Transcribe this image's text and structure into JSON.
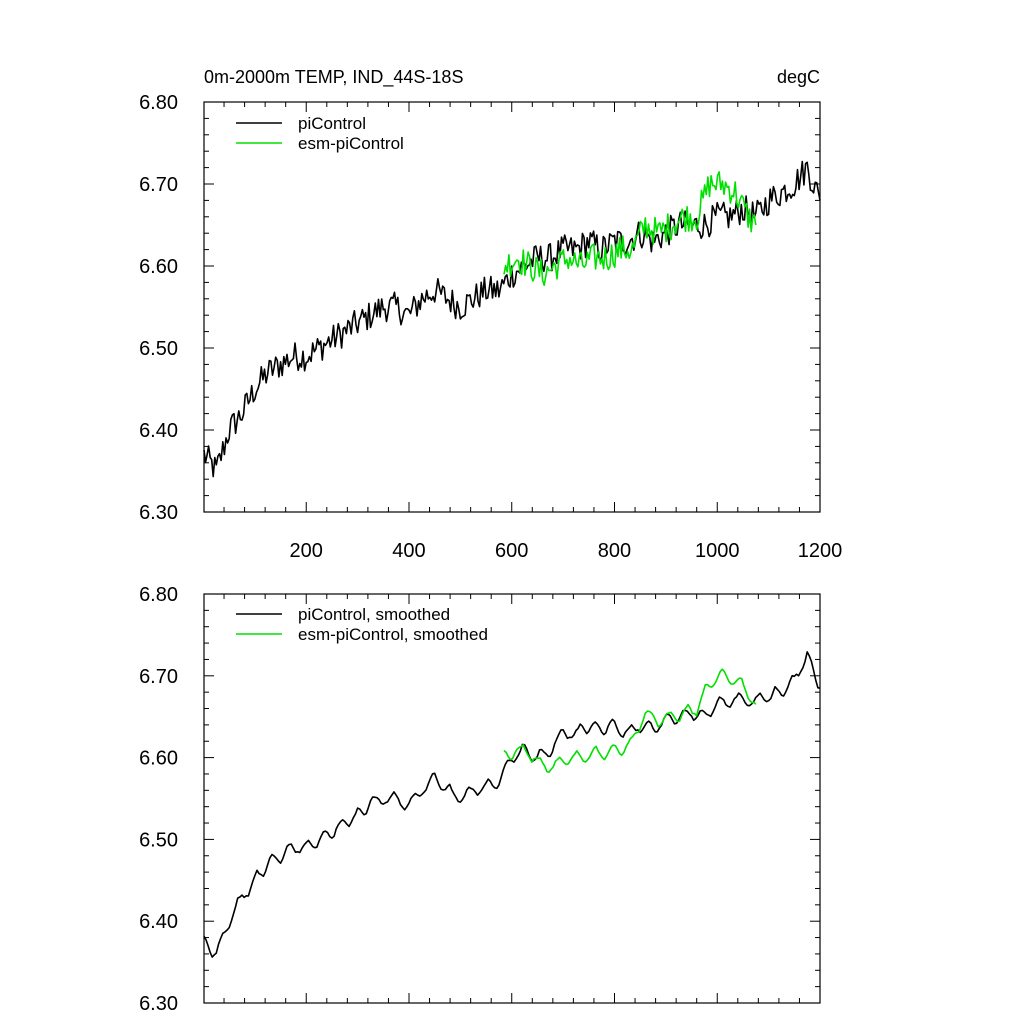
{
  "chart_data": [
    {
      "type": "line",
      "title": "0m-2000m TEMP, IND_44S-18S",
      "units": "degC",
      "xlim": [
        1,
        1200
      ],
      "ylim": [
        6.3,
        6.8
      ],
      "yticks": [
        6.3,
        6.4,
        6.5,
        6.6,
        6.7,
        6.8
      ],
      "ytick_labels": [
        "6.30",
        "6.40",
        "6.50",
        "6.60",
        "6.70",
        "6.80"
      ],
      "xticks": [
        200,
        400,
        600,
        800,
        1000,
        1200
      ],
      "xtick_labels": [
        "200",
        "400",
        "600",
        "800",
        "1000",
        "1200"
      ],
      "legend_position": "top-left",
      "series": [
        {
          "name": "piControl",
          "color": "#000000",
          "x": [
            1,
            25,
            50,
            75,
            100,
            125,
            150,
            175,
            200,
            225,
            250,
            275,
            300,
            325,
            350,
            375,
            400,
            425,
            450,
            475,
            500,
            525,
            550,
            575,
            600,
            625,
            650,
            675,
            700,
            725,
            750,
            775,
            800,
            825,
            850,
            875,
            900,
            925,
            950,
            975,
            1000,
            1025,
            1050,
            1075,
            1100,
            1125,
            1150,
            1175,
            1200
          ],
          "values": [
            6.37,
            6.35,
            6.4,
            6.42,
            6.45,
            6.47,
            6.48,
            6.49,
            6.49,
            6.5,
            6.51,
            6.52,
            6.53,
            6.54,
            6.55,
            6.55,
            6.54,
            6.56,
            6.57,
            6.56,
            6.55,
            6.56,
            6.57,
            6.57,
            6.59,
            6.6,
            6.61,
            6.61,
            6.62,
            6.62,
            6.63,
            6.62,
            6.63,
            6.63,
            6.64,
            6.63,
            6.64,
            6.65,
            6.65,
            6.65,
            6.66,
            6.66,
            6.67,
            6.66,
            6.68,
            6.69,
            6.7,
            6.72,
            6.68
          ]
        },
        {
          "name": "esm-piControl",
          "color": "#00e000",
          "x": [
            585,
            610,
            635,
            660,
            685,
            710,
            735,
            760,
            785,
            810,
            835,
            860,
            885,
            910,
            935,
            960,
            985,
            1010,
            1035,
            1060,
            1075
          ],
          "values": [
            6.6,
            6.61,
            6.6,
            6.59,
            6.6,
            6.61,
            6.6,
            6.61,
            6.61,
            6.62,
            6.62,
            6.65,
            6.64,
            6.65,
            6.66,
            6.66,
            6.7,
            6.7,
            6.69,
            6.66,
            6.65
          ]
        }
      ]
    },
    {
      "type": "line",
      "title": "",
      "xlim": [
        1,
        1200
      ],
      "ylim": [
        6.3,
        6.8
      ],
      "yticks": [
        6.3,
        6.4,
        6.5,
        6.6,
        6.7,
        6.8
      ],
      "ytick_labels": [
        "6.30",
        "6.40",
        "6.50",
        "6.60",
        "6.70",
        "6.80"
      ],
      "xticks": [
        200,
        400,
        600,
        800,
        1000,
        1200
      ],
      "legend_position": "top-left",
      "series": [
        {
          "name": "piControl, smoothed",
          "color": "#000000",
          "x": [
            1,
            25,
            50,
            75,
            100,
            125,
            150,
            175,
            200,
            225,
            250,
            275,
            300,
            325,
            350,
            375,
            400,
            425,
            450,
            475,
            500,
            525,
            550,
            575,
            600,
            625,
            650,
            675,
            700,
            725,
            750,
            775,
            800,
            825,
            850,
            875,
            900,
            925,
            950,
            975,
            1000,
            1025,
            1050,
            1075,
            1100,
            1125,
            1150,
            1175,
            1200
          ],
          "values": [
            6.375,
            6.36,
            6.4,
            6.43,
            6.45,
            6.47,
            6.48,
            6.49,
            6.49,
            6.5,
            6.51,
            6.52,
            6.53,
            6.545,
            6.55,
            6.55,
            6.54,
            6.56,
            6.575,
            6.56,
            6.55,
            6.56,
            6.565,
            6.57,
            6.6,
            6.61,
            6.6,
            6.61,
            6.63,
            6.63,
            6.64,
            6.635,
            6.64,
            6.63,
            6.64,
            6.635,
            6.645,
            6.65,
            6.655,
            6.65,
            6.665,
            6.67,
            6.67,
            6.67,
            6.675,
            6.68,
            6.695,
            6.725,
            6.685
          ]
        },
        {
          "name": "esm-piControl, smoothed",
          "color": "#00e000",
          "x": [
            585,
            610,
            635,
            660,
            685,
            710,
            735,
            760,
            785,
            810,
            835,
            860,
            885,
            910,
            935,
            960,
            985,
            1010,
            1035,
            1060,
            1075
          ],
          "values": [
            6.6,
            6.61,
            6.605,
            6.59,
            6.59,
            6.6,
            6.6,
            6.605,
            6.605,
            6.61,
            6.62,
            6.655,
            6.645,
            6.65,
            6.655,
            6.66,
            6.69,
            6.7,
            6.695,
            6.68,
            6.665
          ]
        }
      ]
    }
  ]
}
